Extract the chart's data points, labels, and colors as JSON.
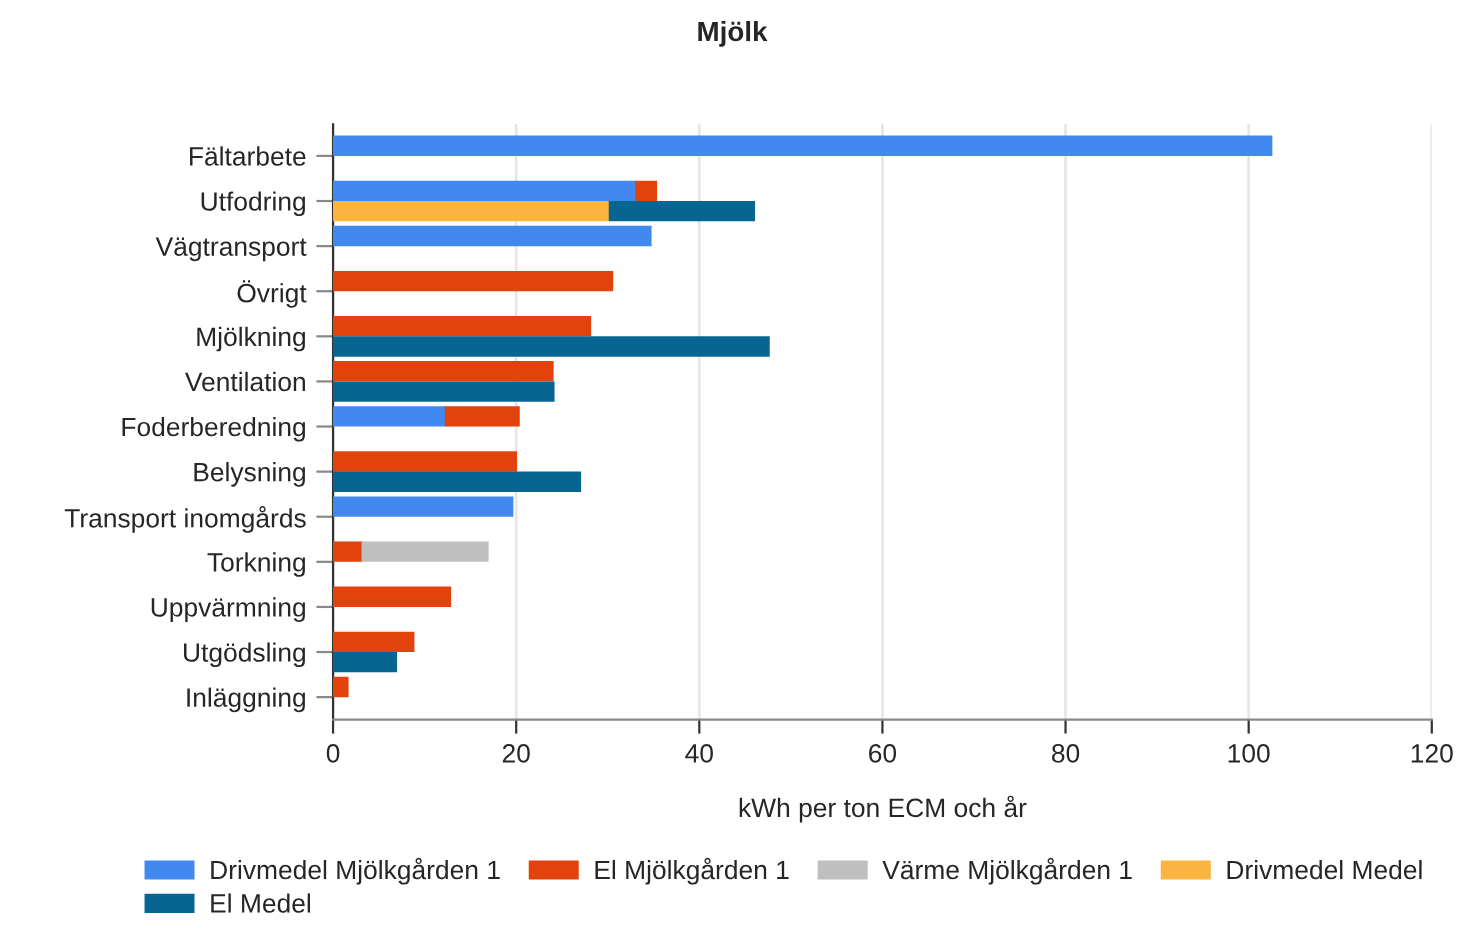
{
  "chart_data": {
    "type": "bar",
    "title": "Mjölk",
    "xlabel": "kWh per ton ECM och år",
    "orientation": "horizontal",
    "categories": [
      "Fältarbete",
      "Utfodring",
      "Vägtransport",
      "Övrigt",
      "Mjölkning",
      "Ventilation",
      "Foderberedning",
      "Belysning",
      "Transport inomgårds",
      "Torkning",
      "Uppvärmning",
      "Utgödsling",
      "Inläggning"
    ],
    "series": [
      {
        "name": "Drivmedel Mjölkgården 1",
        "color": "#4189ee",
        "values": [
          102.5,
          33.1,
          34.7,
          null,
          null,
          null,
          12.3,
          null,
          19.6,
          null,
          null,
          null,
          null
        ],
        "base": [
          0,
          0,
          0,
          null,
          null,
          null,
          0,
          null,
          0,
          null,
          null,
          null,
          null
        ]
      },
      {
        "name": "El Mjölkgården 1",
        "color": "#e2430c",
        "values": [
          null,
          2.2,
          null,
          30.5,
          28.1,
          24.0,
          8.0,
          20.0,
          null,
          3.2,
          12.8,
          8.8,
          1.6
        ],
        "base": [
          null,
          33.1,
          null,
          0,
          0,
          0,
          12.3,
          0,
          null,
          0,
          0,
          0,
          0
        ]
      },
      {
        "name": "Värme Mjölkgården 1",
        "color": "#bfbfbf",
        "values": [
          null,
          null,
          null,
          null,
          null,
          null,
          null,
          null,
          null,
          13.7,
          null,
          null,
          null
        ],
        "base": [
          null,
          null,
          null,
          null,
          null,
          null,
          null,
          null,
          null,
          3.2,
          null,
          null,
          null
        ]
      },
      {
        "name": "Drivmedel Medel",
        "color": "#fbb440",
        "values": [
          null,
          30.2,
          null,
          null,
          null,
          null,
          null,
          null,
          null,
          null,
          null,
          null,
          null
        ],
        "base": [
          null,
          0,
          null,
          null,
          null,
          null,
          null,
          null,
          null,
          null,
          null,
          null,
          null
        ]
      },
      {
        "name": "El Medel",
        "color": "#076592",
        "values": [
          null,
          15.8,
          null,
          null,
          47.6,
          24.1,
          null,
          27.0,
          null,
          null,
          null,
          6.9,
          null
        ],
        "base": [
          null,
          30.2,
          null,
          null,
          0,
          0,
          null,
          0,
          null,
          null,
          null,
          0,
          null
        ]
      }
    ],
    "xlim": [
      0,
      120
    ],
    "xticks": [
      0,
      20,
      40,
      60,
      80,
      100,
      120
    ],
    "grid": "x",
    "legend": "bottom"
  }
}
